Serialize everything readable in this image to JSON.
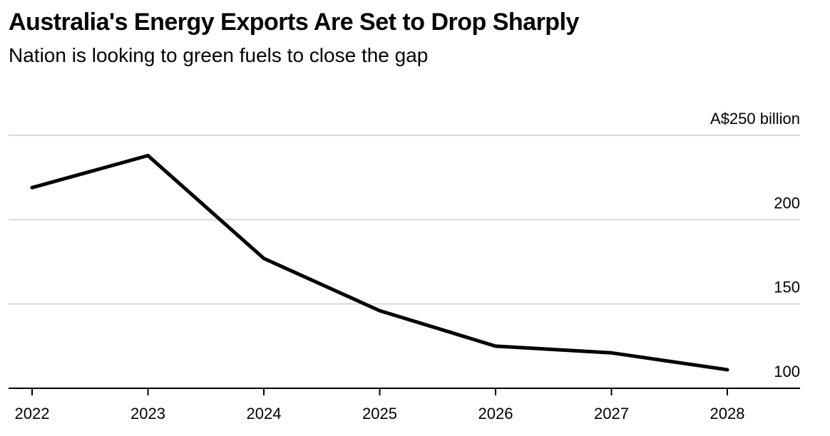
{
  "title": "Australia's Energy Exports Are Set to Drop Sharply",
  "subtitle": "Nation is looking to green fuels to close the gap",
  "chart_data": {
    "type": "line",
    "title": "Australia's Energy Exports Are Set to Drop Sharply",
    "subtitle": "Nation is looking to green fuels to close the gap",
    "x": [
      "2022",
      "2023",
      "2024",
      "2025",
      "2026",
      "2027",
      "2028"
    ],
    "series": [
      {
        "values": [
          219,
          238,
          177,
          146,
          125,
          121,
          111
        ]
      }
    ],
    "ylim": [
      100,
      250
    ],
    "yticks": [
      100,
      150,
      200,
      250
    ],
    "ytick_labels": [
      "100",
      "150",
      "200",
      "A$250 billion"
    ],
    "xlabel": "",
    "ylabel": "",
    "grid": true,
    "legend": "none",
    "colors": {
      "line": "#000000",
      "grid": "#d9d9d9",
      "axis": "#000000"
    }
  }
}
